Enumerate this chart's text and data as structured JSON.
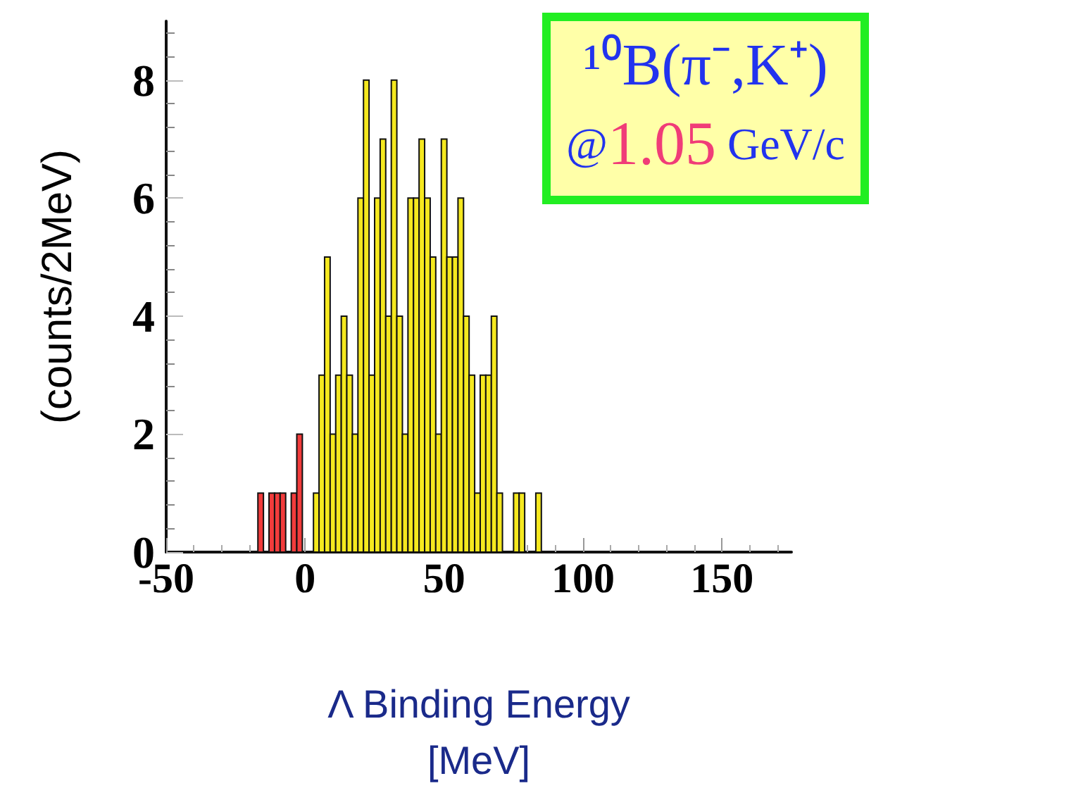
{
  "chart_data": {
    "type": "histogram",
    "title": "¹⁰B(π⁻,K⁺)",
    "subtitle": "@1.05 GeV/c",
    "xlabel": "Λ Binding Energy\n[MeV]",
    "ylabel": "(counts/2MeV)",
    "bins": [
      -17,
      -15,
      -13,
      -11,
      -9,
      -7,
      -5,
      -3,
      -1,
      1,
      3,
      5,
      7,
      9,
      11,
      13,
      15,
      17,
      19,
      21,
      23,
      25,
      27,
      29,
      31,
      33,
      35,
      37,
      39,
      41,
      43,
      45,
      47,
      49,
      51,
      53,
      55,
      57,
      59,
      61,
      63,
      65,
      67,
      69,
      71,
      73,
      75,
      77,
      79,
      81,
      83,
      85
    ],
    "values": [
      1,
      0,
      1,
      1,
      1,
      0,
      1,
      2,
      0,
      0,
      1,
      3,
      5,
      2,
      3,
      4,
      3,
      2,
      6,
      8,
      3,
      6,
      7,
      4,
      8,
      4,
      2,
      6,
      6,
      7,
      6,
      5,
      2,
      7,
      5,
      5,
      6,
      4,
      3,
      1,
      3,
      3,
      4,
      1,
      0,
      0,
      1,
      1,
      0,
      0,
      1
    ],
    "colors": [
      "#f23c3c",
      "#f23c3c",
      "#f23c3c",
      "#f23c3c",
      "#f23c3c",
      "#f23c3c",
      "#f23c3c",
      "#f23c3c",
      "#f23c3c",
      "#f23c3c",
      "#f5e81f",
      "#f5e81f",
      "#f5e81f",
      "#f5e81f",
      "#f5e81f",
      "#f5e81f",
      "#f5e81f",
      "#f5e81f",
      "#f5e81f",
      "#f5e81f",
      "#f5e81f",
      "#f5e81f",
      "#f5e81f",
      "#f5e81f",
      "#f5e81f",
      "#f5e81f",
      "#f5e81f",
      "#f5e81f",
      "#f5e81f",
      "#f5e81f",
      "#f5e81f",
      "#f5e81f",
      "#f5e81f",
      "#f5e81f",
      "#f5e81f",
      "#f5e81f",
      "#f5e81f",
      "#f5e81f",
      "#f5e81f",
      "#f5e81f",
      "#f5e81f",
      "#f5e81f",
      "#f5e81f",
      "#f5e81f",
      "#f5e81f",
      "#f5e81f",
      "#f5e81f",
      "#f5e81f",
      "#f5e81f",
      "#f5e81f",
      "#f5e81f"
    ],
    "xlim": [
      -50,
      175
    ],
    "xticks": [
      -50,
      0,
      50,
      100,
      150
    ],
    "ylim": [
      0,
      9
    ],
    "yticks": [
      0,
      2,
      4,
      6,
      8
    ],
    "grid": false
  }
}
